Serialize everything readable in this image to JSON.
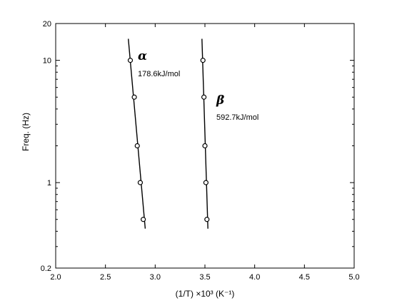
{
  "chart_data": {
    "type": "scatter",
    "xlabel": "(1/T) ×10³ (K⁻¹)",
    "ylabel": "Freq.  (Hz)",
    "xlim": [
      2.0,
      5.0
    ],
    "ylim": [
      0.2,
      20
    ],
    "yscale": "log",
    "x_ticks": [
      "2.0",
      "2.5",
      "3.0",
      "3.5",
      "4.0",
      "4.5",
      "5.0"
    ],
    "y_ticks": [
      "0.2",
      "1",
      "10",
      "20"
    ],
    "grid": false,
    "legend": "none",
    "series": [
      {
        "name": "α",
        "activation_energy": "178.6kJ/mol",
        "points": [
          {
            "x": 2.75,
            "y": 10
          },
          {
            "x": 2.79,
            "y": 5
          },
          {
            "x": 2.82,
            "y": 2
          },
          {
            "x": 2.85,
            "y": 1
          },
          {
            "x": 2.88,
            "y": 0.5
          }
        ],
        "fit_line": [
          {
            "x": 2.73,
            "y": 15
          },
          {
            "x": 2.9,
            "y": 0.42
          }
        ]
      },
      {
        "name": "β",
        "activation_energy": "592.7kJ/mol",
        "points": [
          {
            "x": 3.48,
            "y": 10
          },
          {
            "x": 3.49,
            "y": 5
          },
          {
            "x": 3.5,
            "y": 2
          },
          {
            "x": 3.51,
            "y": 1
          },
          {
            "x": 3.52,
            "y": 0.5
          }
        ],
        "fit_line": [
          {
            "x": 3.47,
            "y": 15
          },
          {
            "x": 3.53,
            "y": 0.42
          }
        ]
      }
    ]
  }
}
